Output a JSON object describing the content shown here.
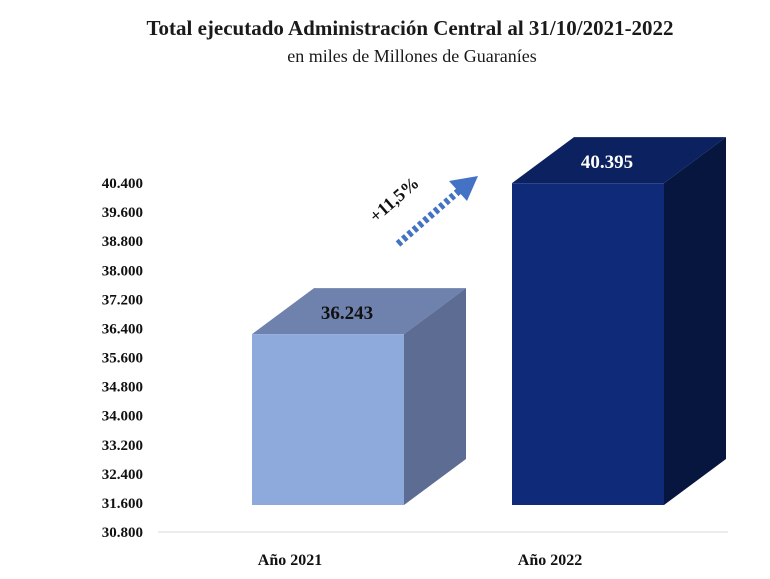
{
  "chart_data": {
    "type": "bar",
    "title": "Total ejecutado Administración Central al  31/10/2021-2022",
    "subtitle": "en miles de  Millones  de Guaraníes",
    "categories": [
      "Año 2021",
      "Año 2022"
    ],
    "values": [
      36243,
      40395
    ],
    "data_labels": [
      "36.243",
      "40.395"
    ],
    "ylim": [
      30800,
      40400
    ],
    "yticks": [
      30800,
      31600,
      32400,
      33200,
      34000,
      34800,
      35600,
      36400,
      37200,
      38000,
      38800,
      39600,
      40400
    ],
    "ytick_labels": [
      "30.800",
      "31.600",
      "32.400",
      "33.200",
      "34.000",
      "34.800",
      "35.600",
      "36.400",
      "37.200",
      "38.000",
      "38.800",
      "39.600",
      "40.400"
    ],
    "annotation": "+11,5%",
    "colors": {
      "bar_2021_front": "#8EA9DB",
      "bar_2021_top": "#6F82AD",
      "bar_2021_side": "#5C6C92",
      "bar_2022_front": "#0E2A78",
      "bar_2022_top": "#0B2160",
      "bar_2022_side": "#07163F",
      "arrow": "#4472C4"
    }
  }
}
